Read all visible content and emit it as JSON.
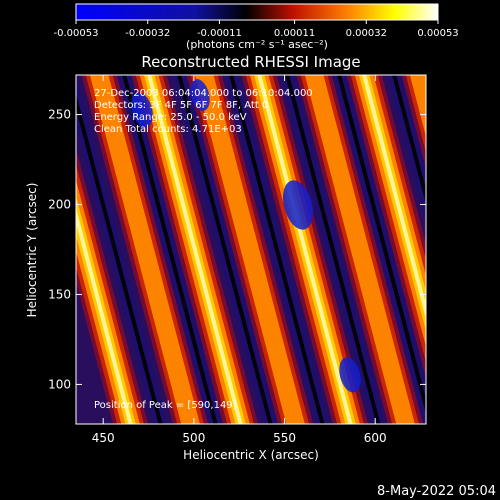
{
  "colorbar": {
    "ticks": [
      "-0.00053",
      "-0.00032",
      "-0.00011",
      "0.00011",
      "0.00032",
      "0.00053"
    ],
    "tick_values": [
      -0.00053,
      -0.00032,
      -0.00011,
      0.00011,
      0.00032,
      0.00053
    ],
    "range": [
      -0.00053,
      0.00053
    ],
    "units": "(photons cm⁻² s⁻¹ asec⁻²)",
    "palette": [
      "#0000ff",
      "#000000",
      "#ff2000",
      "#ffa000",
      "#ffff00",
      "#ffffff"
    ]
  },
  "image": {
    "title": "Reconstructed RHESSI Image",
    "info": [
      "27-Dec-2003 06:04:04.000 to 06:10:04.000",
      "Detectors: 3F 4F 5F 6F 7F 8F, Att 0",
      "Energy Range: 25.0 - 50.0 keV",
      "Clean    Total counts: 4.71E+03"
    ],
    "peak": "Position of Peak = [590,149]",
    "xlabel": "Heliocentric X (arcsec)",
    "ylabel": "Heliocentric Y (arcsec)",
    "xlim": [
      435,
      628
    ],
    "ylim": [
      78,
      272
    ],
    "x_ticks": [
      450,
      500,
      550,
      600
    ],
    "y_ticks": [
      100,
      150,
      200,
      250
    ],
    "x_tick_labels": [
      "450",
      "500",
      "550",
      "600"
    ],
    "y_tick_labels": [
      "100",
      "150",
      "200",
      "250"
    ]
  },
  "timestamp": "8-May-2022 05:04"
}
